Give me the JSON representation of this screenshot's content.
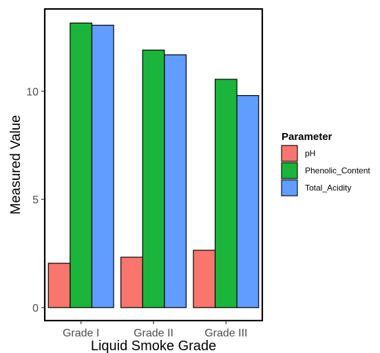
{
  "chart_data": {
    "type": "bar",
    "categories": [
      "Grade I",
      "Grade II",
      "Grade III"
    ],
    "series": [
      {
        "name": "pH",
        "values": [
          2.05,
          2.33,
          2.65
        ],
        "color": "#F8766D"
      },
      {
        "name": "Phenolic_Content",
        "values": [
          13.15,
          11.9,
          10.55
        ],
        "color": "#1AB53A"
      },
      {
        "name": "Total_Acidity",
        "values": [
          13.05,
          11.68,
          9.8
        ],
        "color": "#619CFF"
      }
    ],
    "xlabel": "Liquid Smoke Grade",
    "ylabel": "Measured Value",
    "ylim": [
      -0.6,
      13.8
    ],
    "yticks": [
      0,
      5,
      10
    ],
    "ytick_labels": [
      "0",
      "5",
      "10"
    ],
    "legend_title": "Parameter",
    "legend_position": "right",
    "grid": false
  }
}
